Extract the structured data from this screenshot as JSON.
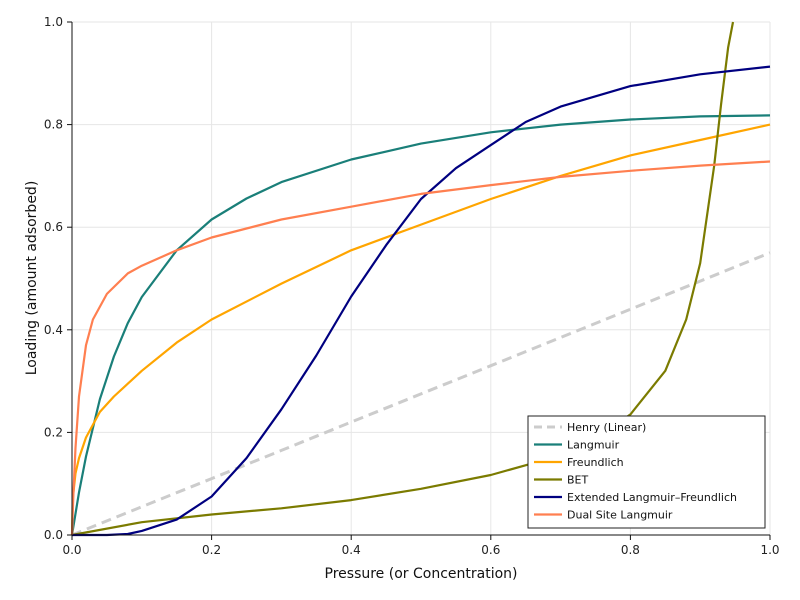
{
  "chart_data": {
    "type": "line",
    "title": "",
    "xlabel": "Pressure (or Concentration)",
    "ylabel": "Loading (amount adsorbed)",
    "xlim": [
      0,
      1
    ],
    "ylim": [
      0,
      1
    ],
    "xticks": [
      "0.0",
      "0.2",
      "0.4",
      "0.6",
      "0.8",
      "1.0"
    ],
    "yticks": [
      "0.0",
      "0.2",
      "0.4",
      "0.6",
      "0.8",
      "1.0"
    ],
    "grid": true,
    "legend_position": "lower-right",
    "series": [
      {
        "name": "Henry (Linear)",
        "color": "#cccccc",
        "dash": true,
        "x": [
          0,
          0.1,
          0.2,
          0.3,
          0.4,
          0.5,
          0.6,
          0.7,
          0.8,
          0.9,
          1.0
        ],
        "y": [
          0,
          0.055,
          0.11,
          0.165,
          0.22,
          0.275,
          0.33,
          0.385,
          0.44,
          0.495,
          0.55
        ]
      },
      {
        "name": "Langmuir",
        "color": "#1a7f79",
        "x": [
          0,
          0.01,
          0.02,
          0.04,
          0.06,
          0.08,
          0.1,
          0.15,
          0.2,
          0.25,
          0.3,
          0.4,
          0.5,
          0.6,
          0.7,
          0.8,
          0.9,
          1.0
        ],
        "y": [
          0,
          0.083,
          0.153,
          0.265,
          0.348,
          0.413,
          0.464,
          0.555,
          0.615,
          0.656,
          0.688,
          0.732,
          0.763,
          0.785,
          0.8,
          0.81,
          0.816,
          0.818
        ]
      },
      {
        "name": "Freundlich",
        "color": "#ffa500",
        "x": [
          0,
          0.001,
          0.005,
          0.01,
          0.02,
          0.04,
          0.06,
          0.1,
          0.15,
          0.2,
          0.3,
          0.4,
          0.5,
          0.6,
          0.7,
          0.8,
          0.9,
          1.0
        ],
        "y": [
          0,
          0.07,
          0.12,
          0.15,
          0.19,
          0.24,
          0.27,
          0.32,
          0.375,
          0.42,
          0.49,
          0.555,
          0.605,
          0.655,
          0.7,
          0.74,
          0.77,
          0.8
        ]
      },
      {
        "name": "BET",
        "color": "#7b7b00",
        "x": [
          0,
          0.1,
          0.2,
          0.3,
          0.4,
          0.5,
          0.6,
          0.7,
          0.75,
          0.8,
          0.85,
          0.88,
          0.9,
          0.92,
          0.93,
          0.94,
          0.947
        ],
        "y": [
          0,
          0.025,
          0.04,
          0.052,
          0.068,
          0.09,
          0.117,
          0.155,
          0.188,
          0.235,
          0.32,
          0.42,
          0.53,
          0.72,
          0.84,
          0.95,
          1.0
        ]
      },
      {
        "name": "Extended Langmuir–Freundlich",
        "color": "#000080",
        "x": [
          0,
          0.05,
          0.08,
          0.1,
          0.15,
          0.2,
          0.25,
          0.3,
          0.35,
          0.4,
          0.45,
          0.5,
          0.55,
          0.6,
          0.65,
          0.7,
          0.8,
          0.9,
          1.0
        ],
        "y": [
          0,
          0.0,
          0.002,
          0.008,
          0.03,
          0.075,
          0.15,
          0.245,
          0.35,
          0.465,
          0.565,
          0.655,
          0.715,
          0.76,
          0.805,
          0.835,
          0.875,
          0.898,
          0.913
        ]
      },
      {
        "name": "Dual Site Langmuir",
        "color": "#ff7f50",
        "x": [
          0,
          0.002,
          0.005,
          0.01,
          0.02,
          0.03,
          0.05,
          0.08,
          0.1,
          0.15,
          0.2,
          0.3,
          0.4,
          0.5,
          0.6,
          0.7,
          0.8,
          0.9,
          1.0
        ],
        "y": [
          0,
          0.08,
          0.17,
          0.27,
          0.37,
          0.42,
          0.47,
          0.51,
          0.525,
          0.555,
          0.58,
          0.615,
          0.64,
          0.665,
          0.682,
          0.698,
          0.71,
          0.72,
          0.728
        ]
      }
    ]
  }
}
